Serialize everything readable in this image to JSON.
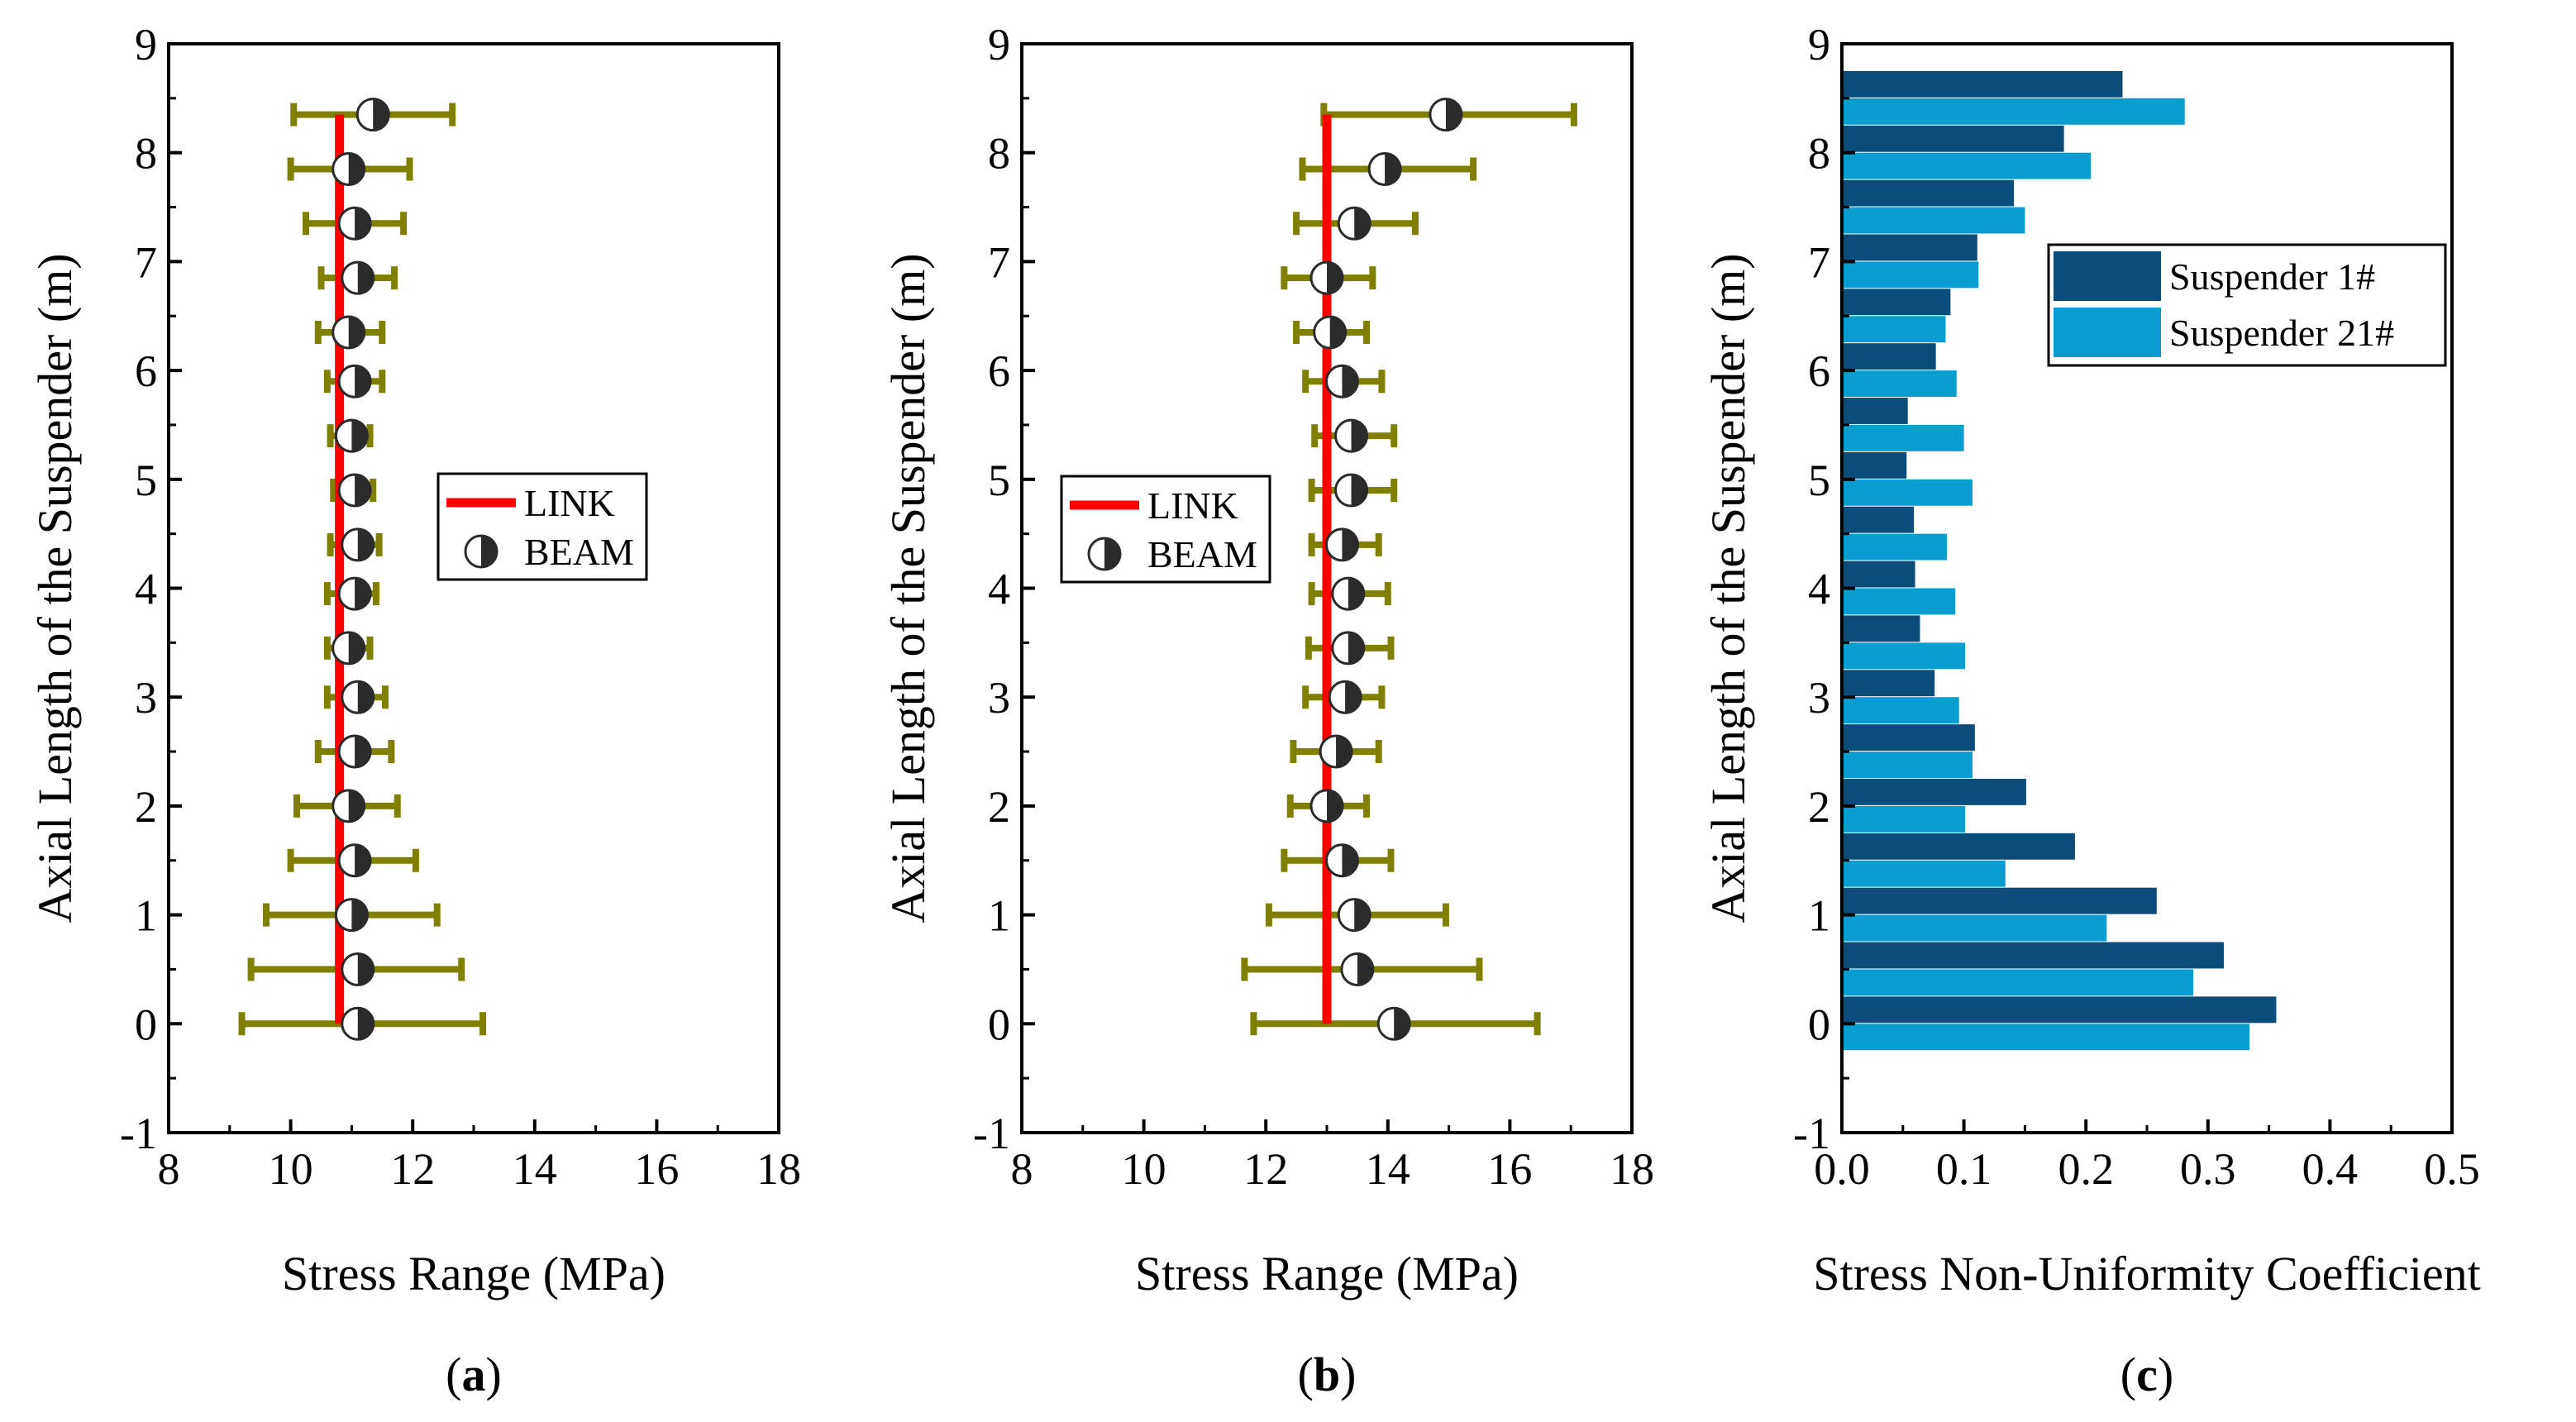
{
  "colors": {
    "axis": "#000000",
    "link": "#ff0000",
    "errorbar": "#808000",
    "beam_dark": "#2b2b2b",
    "beam_light": "#ffffff",
    "suspender1": "#0a4d7a",
    "suspender21": "#0a9ed0"
  },
  "chart_data": [
    {
      "panel": "(a)",
      "panel_letter": "a",
      "type": "scatter",
      "title": "",
      "xlabel": "Stress Range (MPa)",
      "ylabel": "Axial Length of the Suspender (m)",
      "xlim": [
        8,
        18
      ],
      "ylim": [
        -1,
        9
      ],
      "xticks": [
        "8",
        "10",
        "12",
        "14",
        "16",
        "18"
      ],
      "yticks": [
        "-1",
        "0",
        "1",
        "2",
        "3",
        "4",
        "5",
        "6",
        "7",
        "8",
        "9"
      ],
      "legend": {
        "position": "center-right",
        "entries": [
          "LINK",
          "BEAM"
        ]
      },
      "link": {
        "name": "LINK",
        "x": 10.8,
        "y_range": [
          0,
          8.35
        ]
      },
      "beam": {
        "name": "BEAM",
        "y": [
          0,
          0.5,
          1,
          1.5,
          2,
          2.5,
          3,
          3.45,
          3.95,
          4.4,
          4.9,
          5.4,
          5.9,
          6.35,
          6.85,
          7.35,
          7.85,
          8.35
        ],
        "x": [
          11.1,
          11.1,
          11.0,
          11.05,
          10.95,
          11.05,
          11.1,
          10.95,
          11.05,
          11.1,
          11.05,
          11.0,
          11.05,
          10.95,
          11.1,
          11.05,
          10.95,
          11.35
        ],
        "xmin": [
          9.2,
          9.35,
          9.6,
          10.0,
          10.1,
          10.45,
          10.6,
          10.6,
          10.6,
          10.65,
          10.7,
          10.65,
          10.6,
          10.45,
          10.5,
          10.25,
          10.0,
          10.05
        ],
        "xmax": [
          13.15,
          12.8,
          12.4,
          12.05,
          11.75,
          11.65,
          11.55,
          11.3,
          11.4,
          11.45,
          11.35,
          11.3,
          11.5,
          11.5,
          11.7,
          11.85,
          11.95,
          12.65
        ]
      }
    },
    {
      "panel": "(b)",
      "panel_letter": "b",
      "type": "scatter",
      "title": "",
      "xlabel": "Stress Range (MPa)",
      "ylabel": "Axial Length of the Suspender (m)",
      "xlim": [
        8,
        18
      ],
      "ylim": [
        -1,
        9
      ],
      "xticks": [
        "8",
        "10",
        "12",
        "14",
        "16",
        "18"
      ],
      "yticks": [
        "-1",
        "0",
        "1",
        "2",
        "3",
        "4",
        "5",
        "6",
        "7",
        "8",
        "9"
      ],
      "legend": {
        "position": "center-left",
        "entries": [
          "LINK",
          "BEAM"
        ]
      },
      "link": {
        "name": "LINK",
        "x": 13.0,
        "y_range": [
          0,
          8.35
        ]
      },
      "beam": {
        "name": "BEAM",
        "y": [
          0,
          0.5,
          1,
          1.5,
          2,
          2.5,
          3,
          3.45,
          3.95,
          4.4,
          4.9,
          5.4,
          5.9,
          6.35,
          6.85,
          7.35,
          7.85,
          8.35
        ],
        "x": [
          14.1,
          13.5,
          13.45,
          13.25,
          13.0,
          13.15,
          13.3,
          13.35,
          13.35,
          13.25,
          13.4,
          13.4,
          13.25,
          13.05,
          13.0,
          13.45,
          13.95,
          14.95
        ],
        "xmin": [
          11.8,
          11.65,
          12.05,
          12.3,
          12.4,
          12.45,
          12.65,
          12.7,
          12.75,
          12.75,
          12.75,
          12.8,
          12.65,
          12.5,
          12.3,
          12.5,
          12.6,
          12.95
        ],
        "xmax": [
          16.45,
          15.5,
          14.95,
          14.05,
          13.65,
          13.85,
          13.9,
          14.05,
          14.0,
          13.85,
          14.1,
          14.1,
          13.9,
          13.65,
          13.75,
          14.45,
          15.4,
          17.05
        ]
      }
    },
    {
      "panel": "(c)",
      "panel_letter": "c",
      "type": "bar",
      "orientation": "horizontal",
      "title": "",
      "xlabel": "Stress Non-Uniformity Coefficient",
      "ylabel": "Axial Length of the Suspender (m)",
      "xlim": [
        0.0,
        0.5
      ],
      "ylim": [
        -1,
        9
      ],
      "xticks": [
        "0.0",
        "0.1",
        "0.2",
        "0.3",
        "0.4",
        "0.5"
      ],
      "yticks": [
        "-1",
        "0",
        "1",
        "2",
        "3",
        "4",
        "5",
        "6",
        "7",
        "8",
        "9"
      ],
      "legend": {
        "position": "top-right",
        "entries": [
          "Suspender 1#",
          "Suspender 21#"
        ]
      },
      "categories": [
        0,
        0.5,
        1,
        1.5,
        2,
        2.5,
        3,
        3.5,
        4,
        4.5,
        5,
        5.5,
        6,
        6.5,
        7,
        7.5,
        8,
        8.5
      ],
      "series": [
        {
          "name": "Suspender 1#",
          "values": [
            0.356,
            0.313,
            0.258,
            0.191,
            0.151,
            0.109,
            0.076,
            0.064,
            0.06,
            0.059,
            0.053,
            0.054,
            0.077,
            0.089,
            0.111,
            0.141,
            0.182,
            0.23
          ]
        },
        {
          "name": "Suspender 21#",
          "values": [
            0.334,
            0.288,
            0.217,
            0.134,
            0.101,
            0.107,
            0.096,
            0.101,
            0.093,
            0.086,
            0.107,
            0.1,
            0.094,
            0.085,
            0.112,
            0.15,
            0.204,
            0.281
          ]
        }
      ]
    }
  ]
}
